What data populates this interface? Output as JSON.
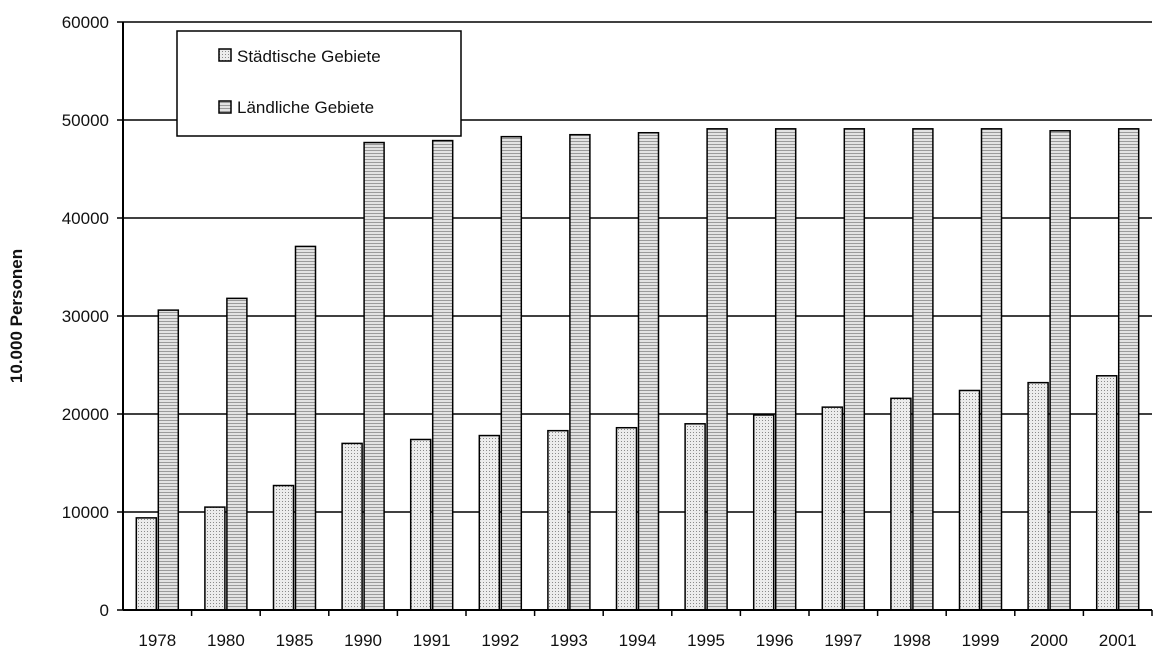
{
  "chart_data": {
    "type": "bar",
    "title": "",
    "xlabel": "",
    "ylabel": "10.000 Personen",
    "ylim": [
      0,
      60000
    ],
    "yticks": [
      0,
      10000,
      20000,
      30000,
      40000,
      50000,
      60000
    ],
    "grid": true,
    "legend_position": "top-left",
    "categories": [
      "1978",
      "1980",
      "1985",
      "1990",
      "1991",
      "1992",
      "1993",
      "1994",
      "1995",
      "1996",
      "1997",
      "1998",
      "1999",
      "2000",
      "2001"
    ],
    "series": [
      {
        "name": "Städtische Gebiete",
        "color": "#dcdcdc",
        "values": [
          9400,
          10500,
          12700,
          17000,
          17400,
          17800,
          18300,
          18600,
          19000,
          19900,
          20700,
          21600,
          22400,
          23200,
          23900
        ]
      },
      {
        "name": "Ländliche Gebiete",
        "color": "#c8c8c8",
        "values": [
          30600,
          31800,
          37100,
          47700,
          47900,
          48300,
          48500,
          48700,
          49100,
          49100,
          49100,
          49100,
          49100,
          48900,
          49100
        ]
      }
    ]
  }
}
